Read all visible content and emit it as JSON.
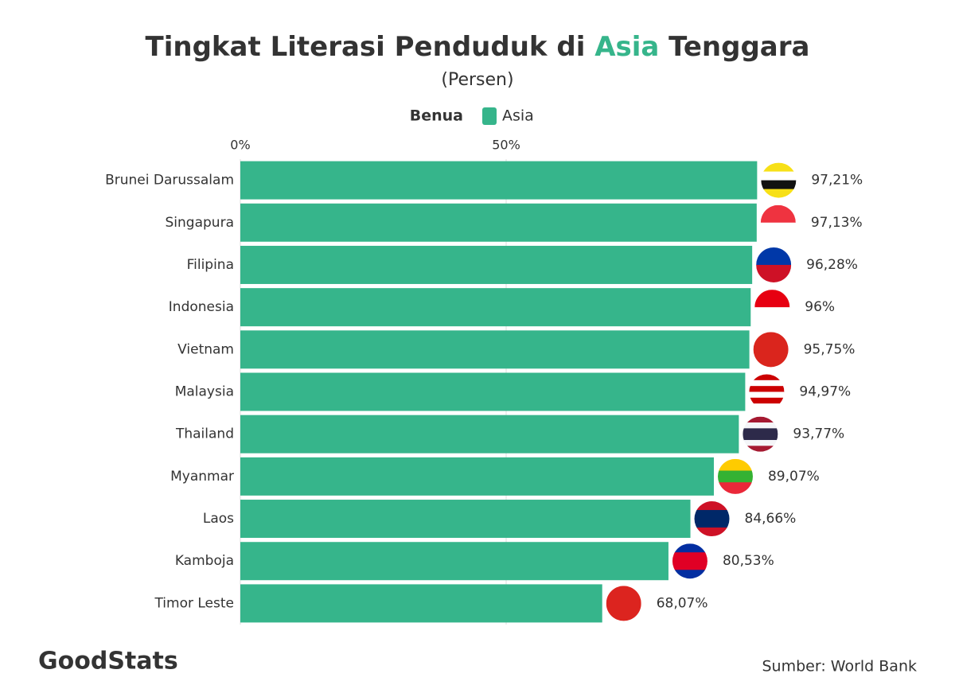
{
  "chart_data": {
    "type": "bar",
    "orientation": "horizontal",
    "title": "Tingkat Literasi Penduduk di Asia Tenggara",
    "subtitle": "(Persen)",
    "legend_title": "Benua",
    "categories": [
      "Brunei Darussalam",
      "Singapura",
      "Filipina",
      "Indonesia",
      "Vietnam",
      "Malaysia",
      "Thailand",
      "Myanmar",
      "Laos",
      "Kamboja",
      "Timor Leste"
    ],
    "series": [
      {
        "name": "Asia",
        "color": "#36b58b",
        "values": [
          97.21,
          97.13,
          96.28,
          96,
          95.75,
          94.97,
          93.77,
          89.07,
          84.66,
          80.53,
          68.07
        ],
        "value_labels": [
          "97,21%",
          "97,13%",
          "96,28%",
          "96%",
          "95,75%",
          "94,97%",
          "93,77%",
          "89,07%",
          "84,66%",
          "80,53%",
          "68,07%"
        ]
      }
    ],
    "xlim": [
      0,
      100
    ],
    "xticks": [
      {
        "value": 0,
        "label": "0%"
      },
      {
        "value": 50,
        "label": "50%"
      }
    ],
    "grid": true,
    "source": "Sumber: World Bank",
    "logo": "GoodStats"
  }
}
